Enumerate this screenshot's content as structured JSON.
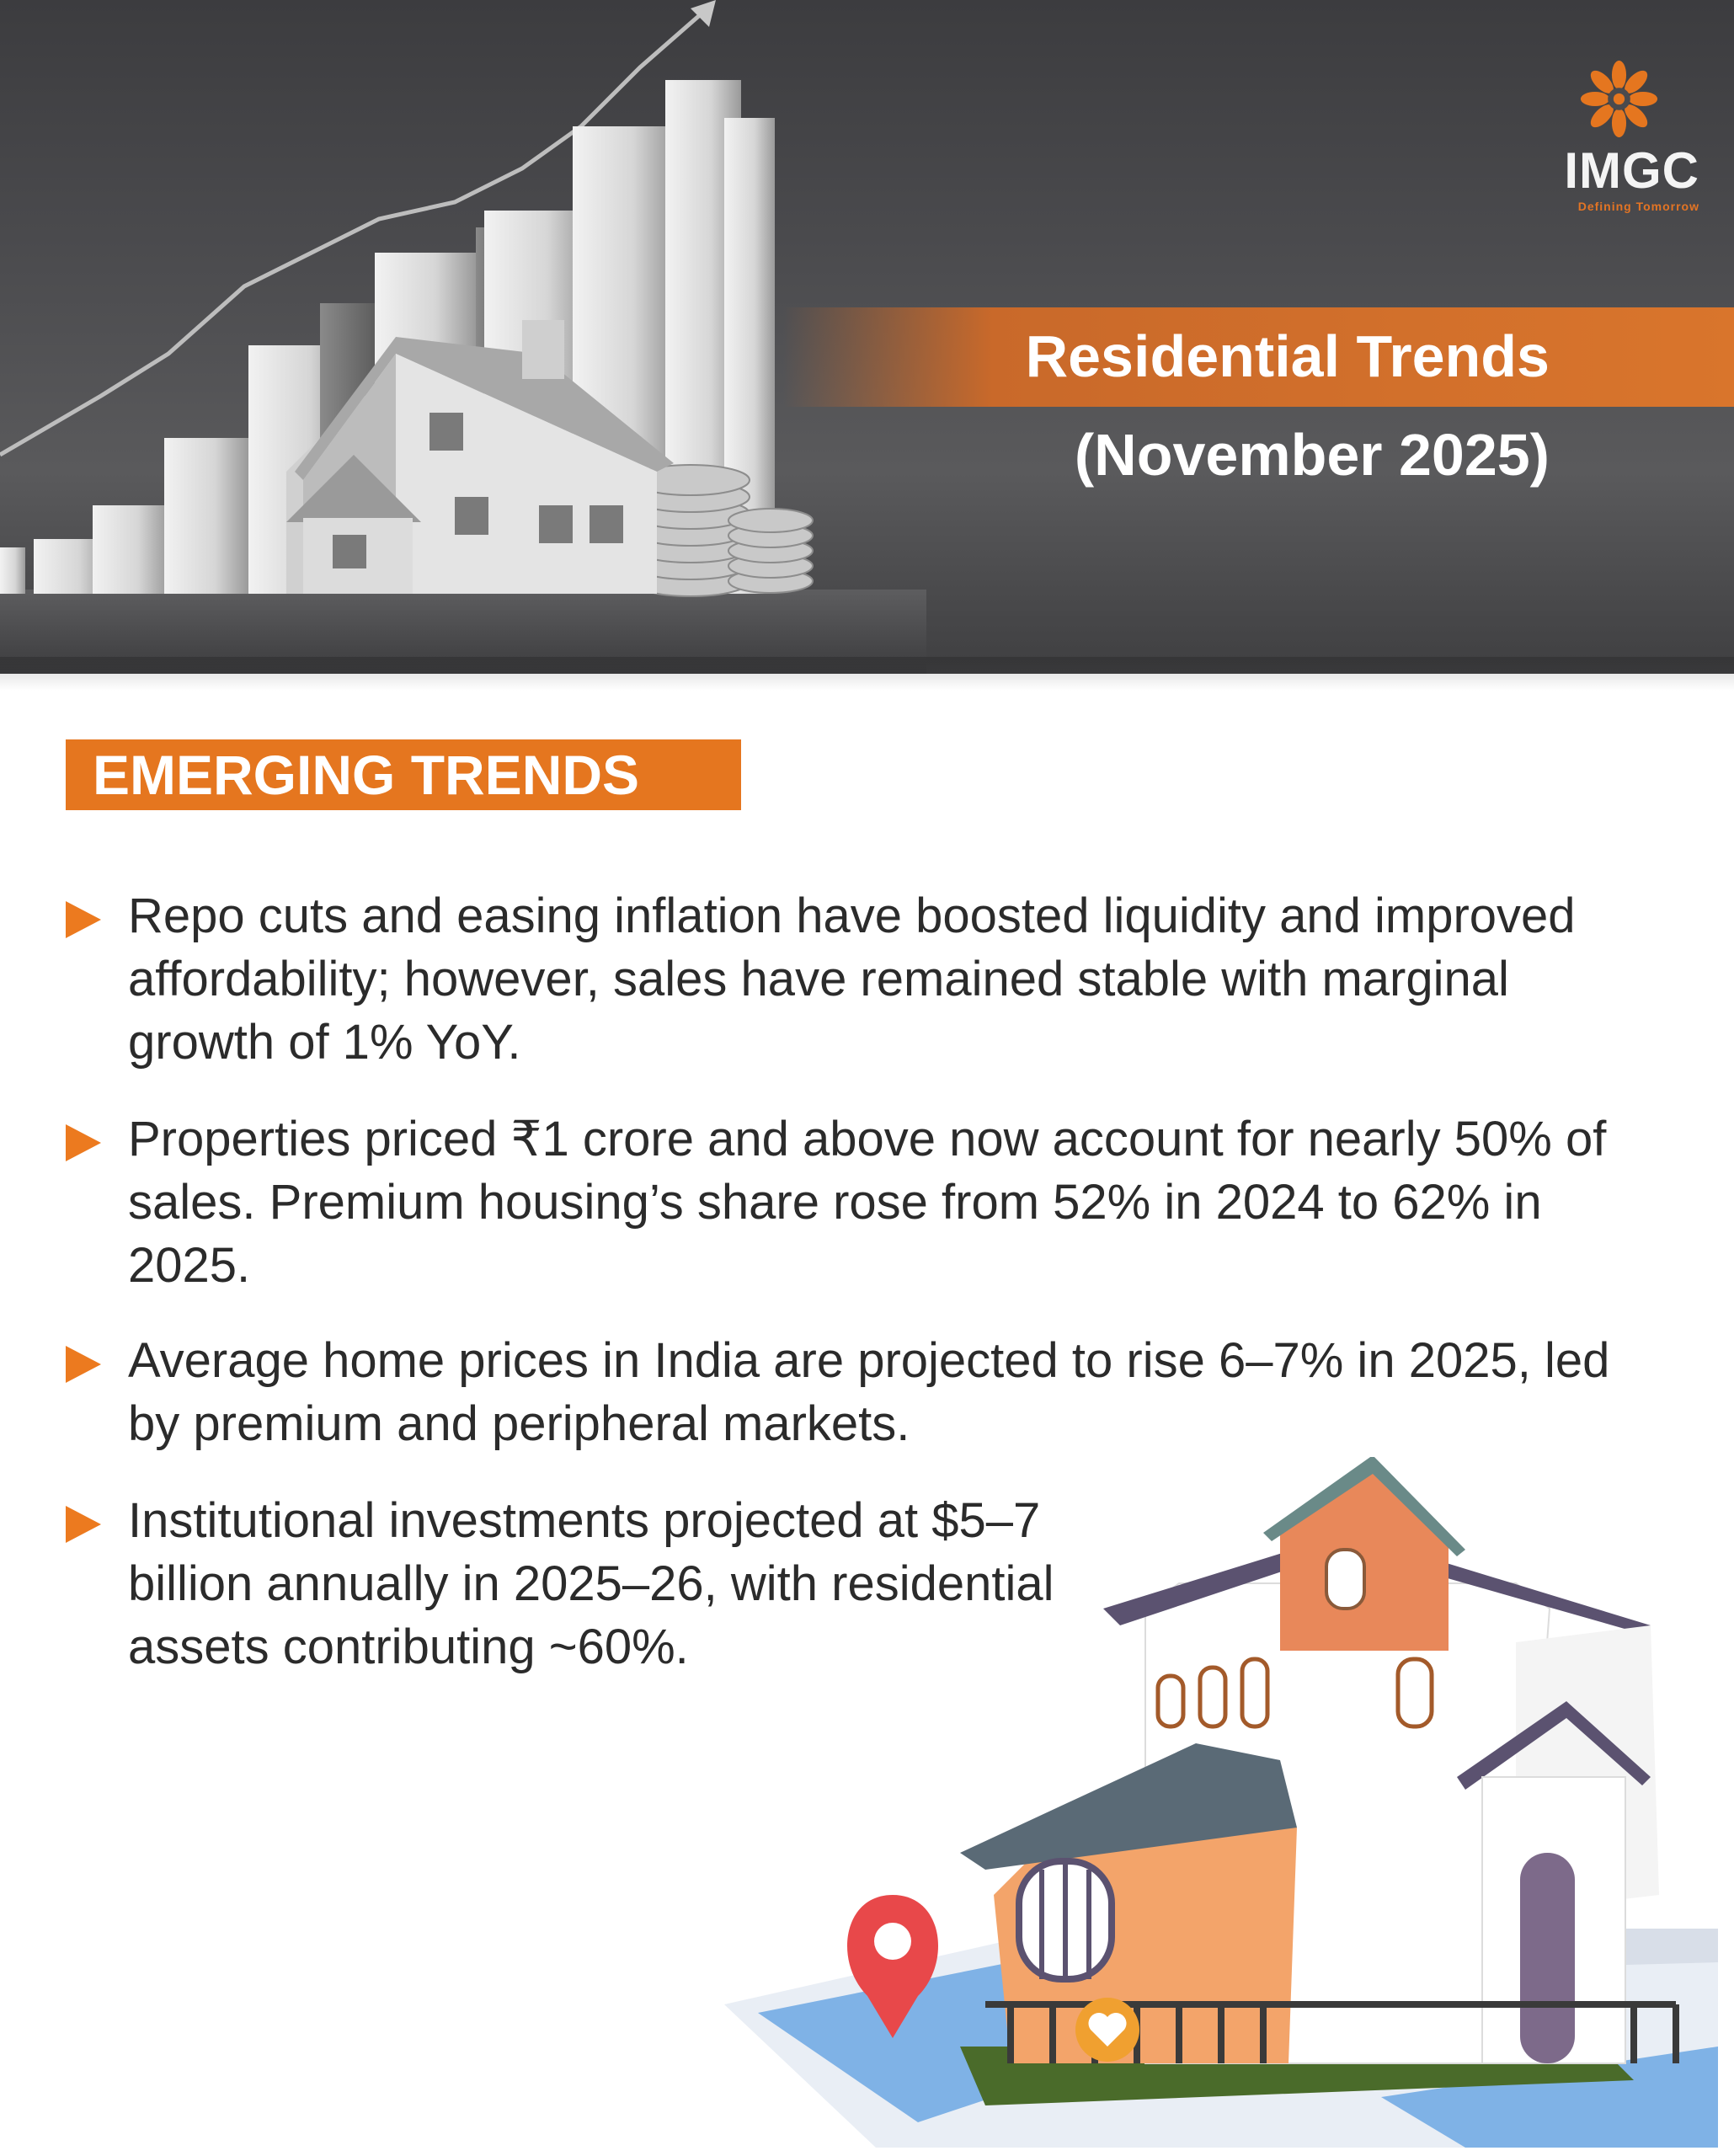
{
  "header": {
    "title_line1": "Residential Trends",
    "title_line2": "(November 2025)"
  },
  "logo": {
    "name": "IMGC",
    "tagline": "Defining Tomorrow",
    "accent_color": "#e5761f"
  },
  "section": {
    "label": "EMERGING TRENDS"
  },
  "bullets": [
    {
      "text": "Repo cuts and easing inflation have boosted liquidity and improved affordability; however, sales have remained stable with marginal growth of 1% YoY."
    },
    {
      "text": "Properties priced ₹1 crore and above now account for nearly 50% of sales. Premium housing’s share rose from 52% in 2024 to 62% in 2025."
    },
    {
      "text": "Average home prices in India are projected to rise 6–7% in 2025, led by premium and peripheral markets."
    },
    {
      "text": "Institutional investments projected at $5–7 billion annually in 2025–26, with residential assets contributing ~60%."
    }
  ],
  "colors": {
    "orange": "#e5761f",
    "dark_header": "#4a4a4d",
    "body_text": "#2b2b2b"
  }
}
